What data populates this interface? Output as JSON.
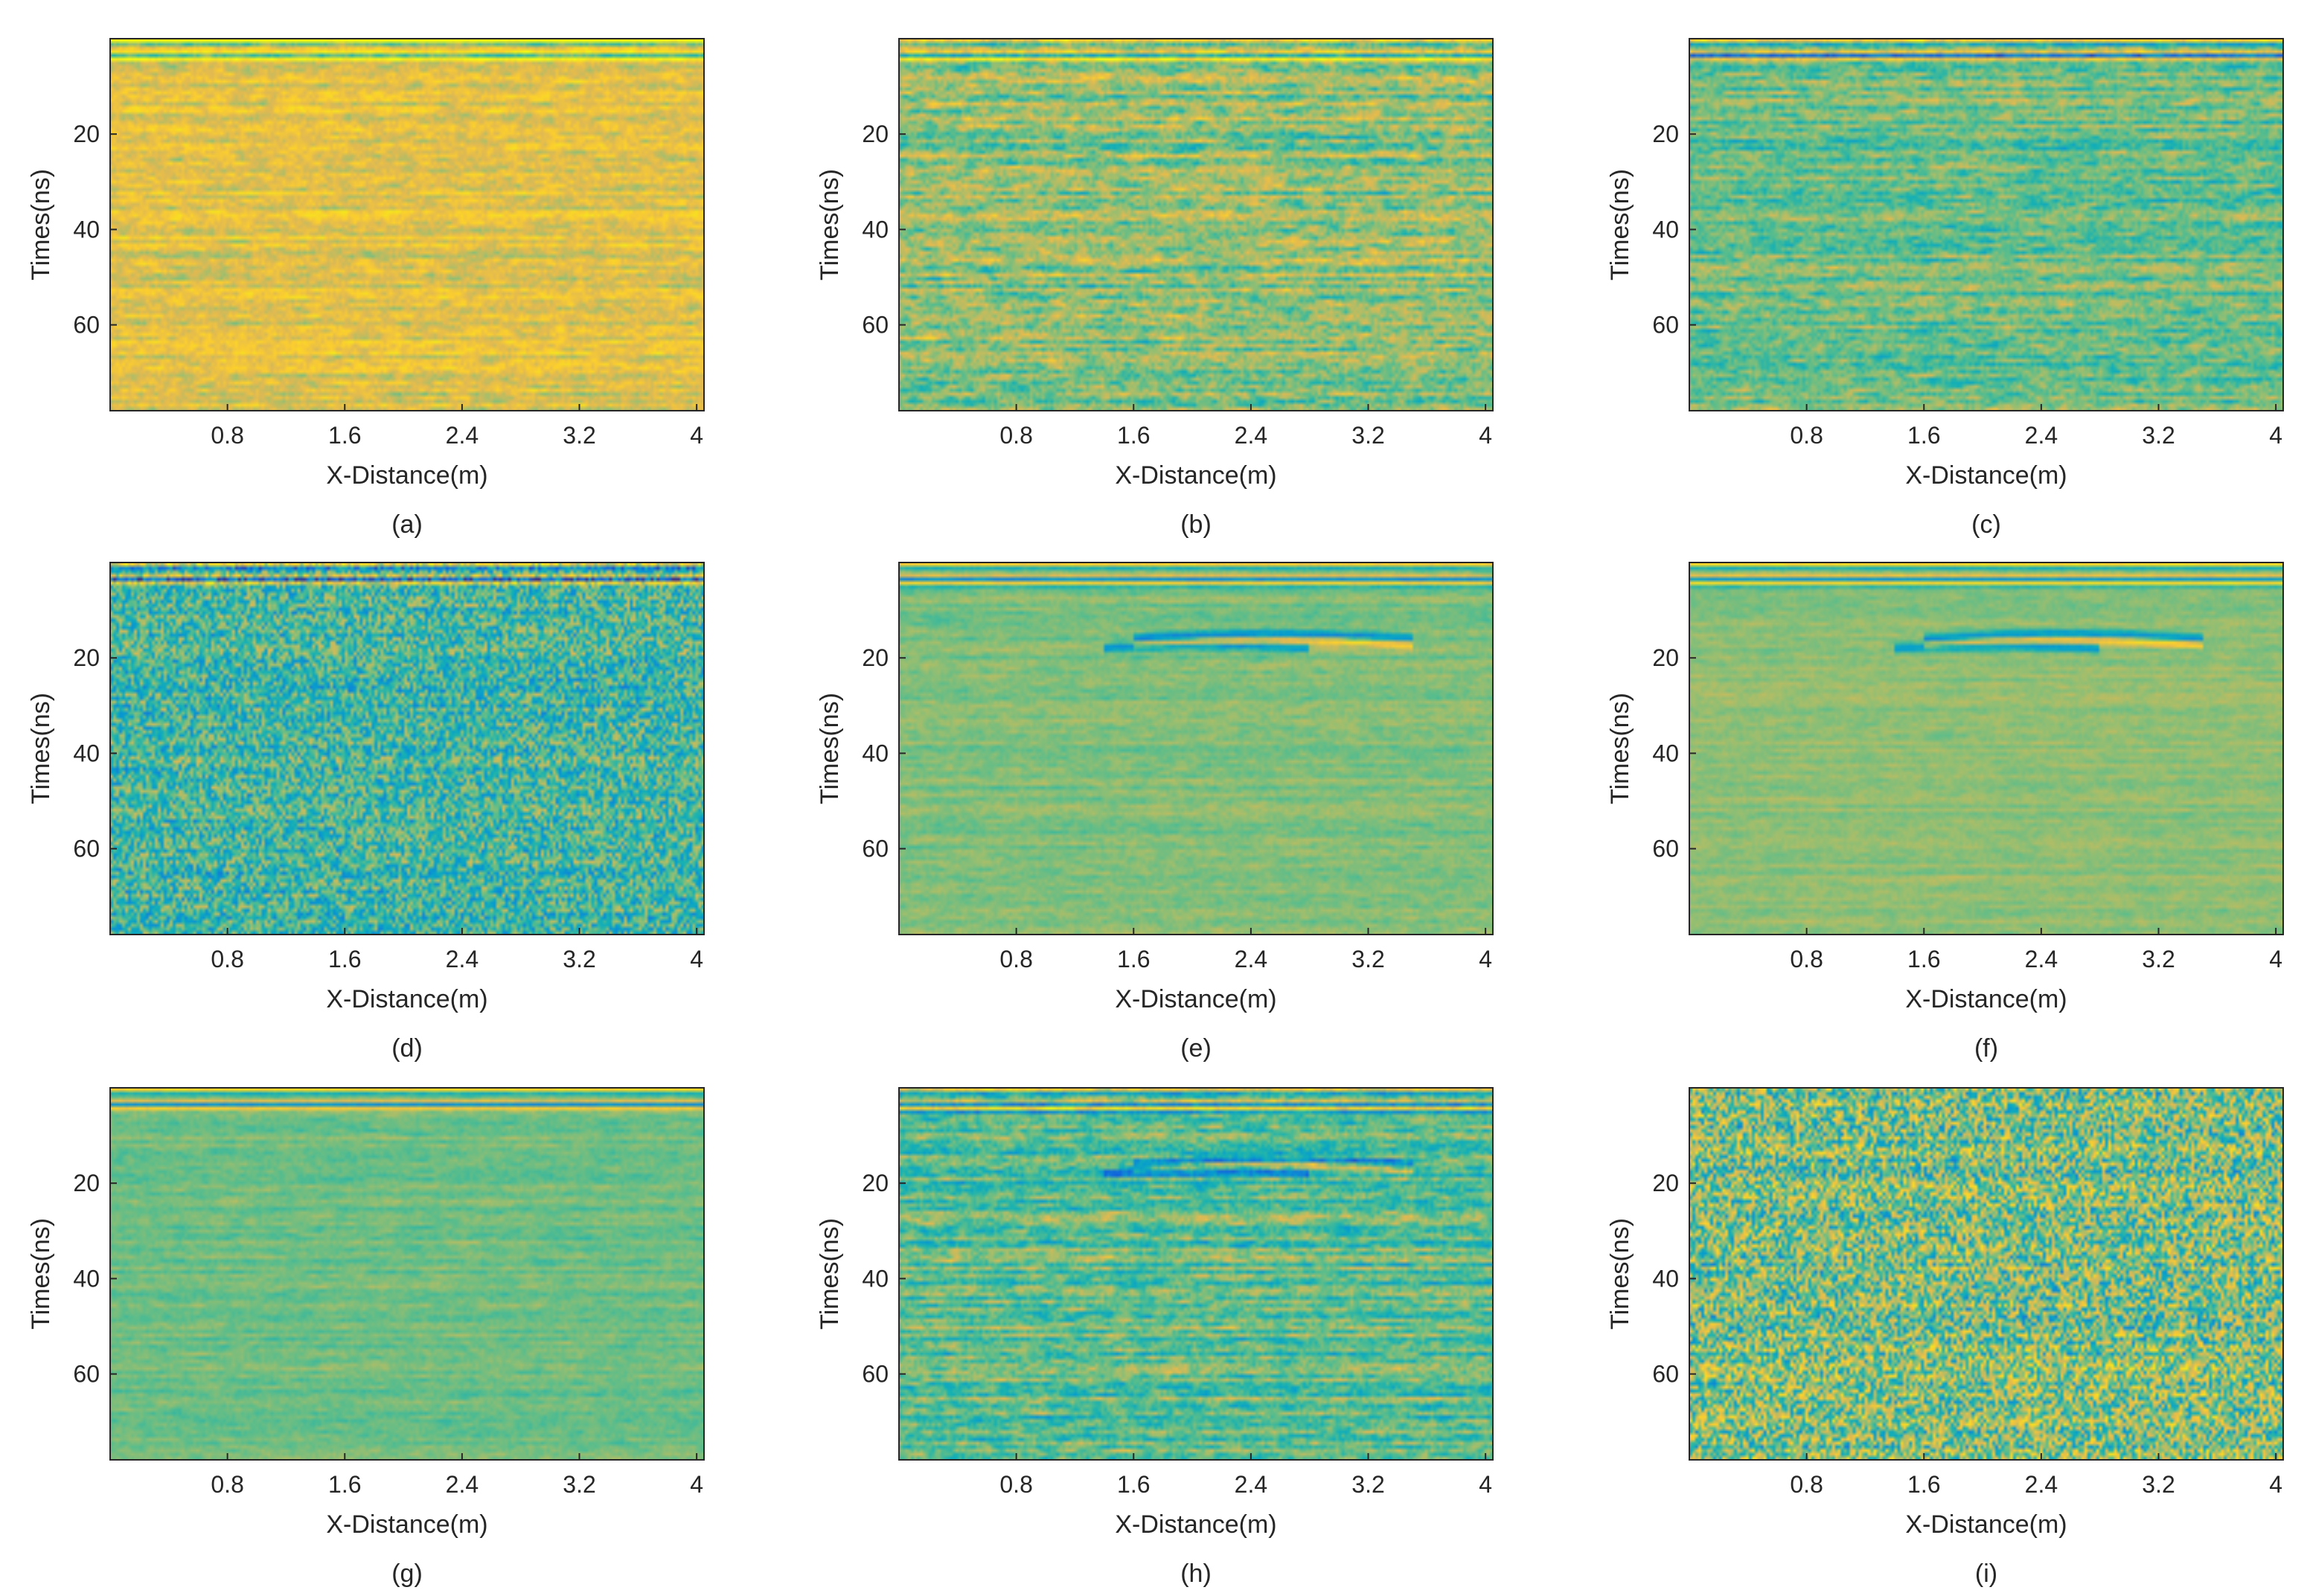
{
  "chart_data": [
    {
      "type": "heatmap",
      "panel_label": "(a)",
      "xlabel": "X-Distance(m)",
      "ylabel": "Times(ns)",
      "x_ticks": [
        0.8,
        1.6,
        2.4,
        3.2,
        4.0
      ],
      "y_ticks": [
        20,
        40,
        60
      ],
      "xlim": [
        0.0,
        4.05
      ],
      "ylim": [
        0,
        78
      ],
      "y_reversed": true,
      "colormap": "parula",
      "mean_level": 0.72,
      "noise_level": 0.1,
      "horizontal_streaks": true,
      "reflection_hyperbola": false,
      "surface_band_ns": 3
    },
    {
      "type": "heatmap",
      "panel_label": "(b)",
      "xlabel": "X-Distance(m)",
      "ylabel": "Times(ns)",
      "x_ticks": [
        0.8,
        1.6,
        2.4,
        3.2,
        4.0
      ],
      "y_ticks": [
        20,
        40,
        60
      ],
      "xlim": [
        0.0,
        4.05
      ],
      "ylim": [
        0,
        78
      ],
      "y_reversed": true,
      "colormap": "parula",
      "mean_level": 0.58,
      "noise_level": 0.14,
      "horizontal_streaks": true,
      "reflection_hyperbola": false,
      "surface_band_ns": 3
    },
    {
      "type": "heatmap",
      "panel_label": "(c)",
      "xlabel": "X-Distance(m)",
      "ylabel": "Times(ns)",
      "x_ticks": [
        0.8,
        1.6,
        2.4,
        3.2,
        4.0
      ],
      "y_ticks": [
        20,
        40,
        60
      ],
      "xlim": [
        0.0,
        4.05
      ],
      "ylim": [
        0,
        78
      ],
      "y_reversed": true,
      "colormap": "parula",
      "mean_level": 0.52,
      "noise_level": 0.12,
      "horizontal_streaks": true,
      "reflection_hyperbola": false,
      "surface_band_ns": 3
    },
    {
      "type": "heatmap",
      "panel_label": "(d)",
      "xlabel": "X-Distance(m)",
      "ylabel": "Times(ns)",
      "x_ticks": [
        0.8,
        1.6,
        2.4,
        3.2,
        4.0
      ],
      "y_ticks": [
        20,
        40,
        60
      ],
      "xlim": [
        0.0,
        4.05
      ],
      "ylim": [
        0,
        78
      ],
      "y_reversed": true,
      "colormap": "parula",
      "mean_level": 0.45,
      "noise_level": 0.2,
      "horizontal_streaks": false,
      "reflection_hyperbola": false,
      "surface_band_ns": 3
    },
    {
      "type": "heatmap",
      "panel_label": "(e)",
      "xlabel": "X-Distance(m)",
      "ylabel": "Times(ns)",
      "x_ticks": [
        0.8,
        1.6,
        2.4,
        3.2,
        4.0
      ],
      "y_ticks": [
        20,
        40,
        60
      ],
      "xlim": [
        0.0,
        4.05
      ],
      "ylim": [
        0,
        78
      ],
      "y_reversed": true,
      "colormap": "parula",
      "mean_level": 0.55,
      "noise_level": 0.05,
      "horizontal_streaks": true,
      "reflection_hyperbola": true,
      "surface_band_ns": 4
    },
    {
      "type": "heatmap",
      "panel_label": "(f)",
      "xlabel": "X-Distance(m)",
      "ylabel": "Times(ns)",
      "x_ticks": [
        0.8,
        1.6,
        2.4,
        3.2,
        4.0
      ],
      "y_ticks": [
        20,
        40,
        60
      ],
      "xlim": [
        0.0,
        4.05
      ],
      "ylim": [
        0,
        78
      ],
      "y_reversed": true,
      "colormap": "parula",
      "mean_level": 0.57,
      "noise_level": 0.04,
      "horizontal_streaks": true,
      "reflection_hyperbola": true,
      "surface_band_ns": 4
    },
    {
      "type": "heatmap",
      "panel_label": "(g)",
      "xlabel": "X-Distance(m)",
      "ylabel": "Times(ns)",
      "x_ticks": [
        0.8,
        1.6,
        2.4,
        3.2,
        4.0
      ],
      "y_ticks": [
        20,
        40,
        60
      ],
      "xlim": [
        0.0,
        4.05
      ],
      "ylim": [
        0,
        78
      ],
      "y_reversed": true,
      "colormap": "parula",
      "mean_level": 0.53,
      "noise_level": 0.05,
      "horizontal_streaks": true,
      "reflection_hyperbola": false,
      "surface_band_ns": 3
    },
    {
      "type": "heatmap",
      "panel_label": "(h)",
      "xlabel": "X-Distance(m)",
      "ylabel": "Times(ns)",
      "x_ticks": [
        0.8,
        1.6,
        2.4,
        3.2,
        4.0
      ],
      "y_ticks": [
        20,
        40,
        60
      ],
      "xlim": [
        0.0,
        4.05
      ],
      "ylim": [
        0,
        78
      ],
      "y_reversed": true,
      "colormap": "parula",
      "mean_level": 0.5,
      "noise_level": 0.13,
      "horizontal_streaks": true,
      "reflection_hyperbola": true,
      "surface_band_ns": 4
    },
    {
      "type": "heatmap",
      "panel_label": "(i)",
      "xlabel": "X-Distance(m)",
      "ylabel": "Times(ns)",
      "x_ticks": [
        0.8,
        1.6,
        2.4,
        3.2,
        4.0
      ],
      "y_ticks": [
        20,
        40,
        60
      ],
      "xlim": [
        0.0,
        4.05
      ],
      "ylim": [
        0,
        78
      ],
      "y_reversed": true,
      "colormap": "parula",
      "mean_level": 0.55,
      "noise_level": 0.28,
      "horizontal_streaks": false,
      "reflection_hyperbola": false,
      "surface_band_ns": 0
    }
  ]
}
